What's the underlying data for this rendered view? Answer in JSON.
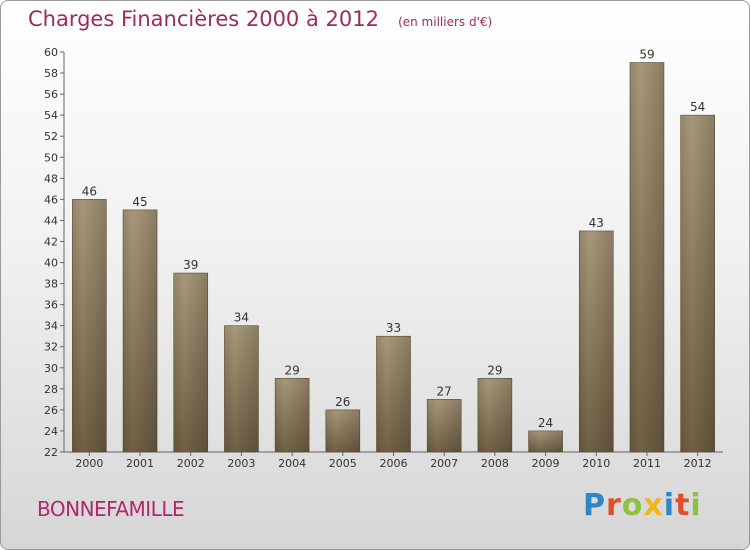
{
  "header": {
    "title": "Charges Financières 2000 à 2012",
    "subtitle": "(en milliers d'€)"
  },
  "footer": {
    "commune": "BONNEFAMILLE",
    "logo": "Proxiti"
  },
  "colors": {
    "title": "#9b2c5c",
    "bar_light": "#a8987a",
    "bar_dark": "#6f5f44"
  },
  "chart_data": {
    "type": "bar",
    "title": "Charges Financières 2000 à 2012",
    "subtitle": "(en milliers d'€)",
    "xlabel": "",
    "ylabel": "",
    "categories": [
      "2000",
      "2001",
      "2002",
      "2003",
      "2004",
      "2005",
      "2006",
      "2007",
      "2008",
      "2009",
      "2010",
      "2011",
      "2012"
    ],
    "values": [
      46,
      45,
      39,
      34,
      29,
      26,
      33,
      27,
      29,
      24,
      43,
      59,
      54
    ],
    "ylim": [
      22,
      60
    ],
    "ytick_step": 2,
    "grid": false,
    "legend": "none"
  }
}
